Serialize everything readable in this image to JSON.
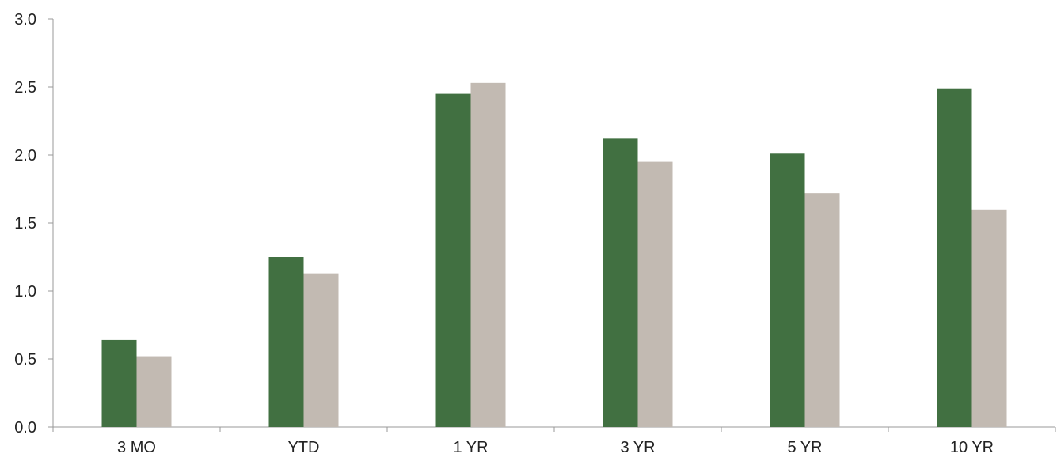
{
  "chart_data": {
    "type": "bar",
    "categories": [
      "3 MO",
      "YTD",
      "1 YR",
      "3 YR",
      "5 YR",
      "10 YR"
    ],
    "series": [
      {
        "values": [
          0.64,
          1.25,
          2.45,
          2.12,
          2.01,
          2.49
        ],
        "color": "#417041"
      },
      {
        "values": [
          0.52,
          1.13,
          2.53,
          1.95,
          1.72,
          1.6
        ],
        "color": "#c2bab2"
      }
    ],
    "ylim": [
      0,
      3.0
    ],
    "yticks": [
      "0.0",
      "0.5",
      "1.0",
      "1.5",
      "2.0",
      "2.5",
      "3.0"
    ],
    "xlabel": "",
    "ylabel": "",
    "title": "",
    "grid": false,
    "legend": "none",
    "axis_color": "#999999"
  }
}
